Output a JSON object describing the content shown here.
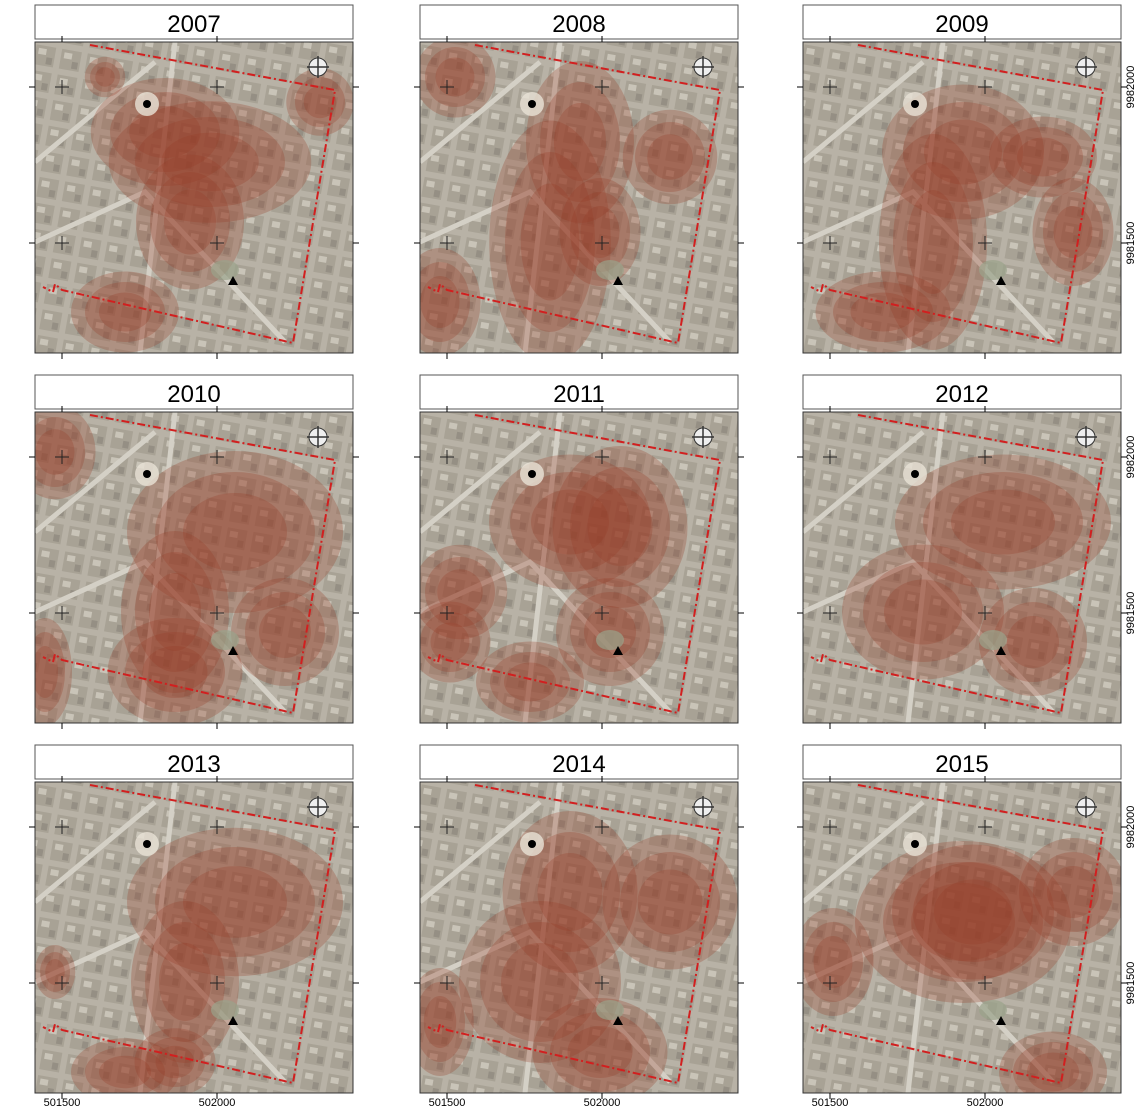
{
  "panels": [
    {
      "title": "2007"
    },
    {
      "title": "2008"
    },
    {
      "title": "2009"
    },
    {
      "title": "2010"
    },
    {
      "title": "2011"
    },
    {
      "title": "2012"
    },
    {
      "title": "2013"
    },
    {
      "title": "2014"
    },
    {
      "title": "2015"
    }
  ],
  "x_axis_labels": [
    "501500",
    "502000"
  ],
  "y_axis_labels": [
    "9982000",
    "9981500"
  ]
}
